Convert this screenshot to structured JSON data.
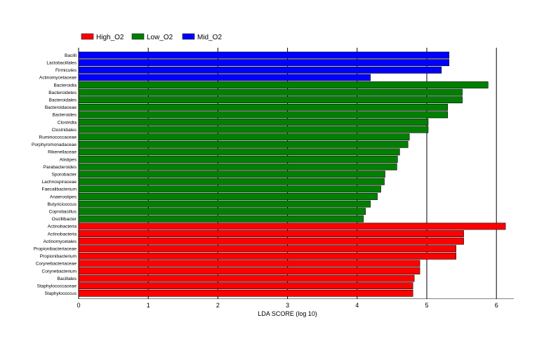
{
  "chart_data": {
    "type": "bar",
    "orientation": "horizontal",
    "title": "",
    "xlabel": "LDA SCORE (log 10)",
    "ylabel": "",
    "xlim": [
      0,
      6.25
    ],
    "xticks": [
      "0",
      "1",
      "2",
      "3",
      "4",
      "5",
      "6"
    ],
    "grid": "vertical lines at major ticks",
    "legend_placement": "top-left",
    "legend": [
      {
        "name": "High_O2",
        "color": "#ff0000"
      },
      {
        "name": "Low_O2",
        "color": "#008000"
      },
      {
        "name": "Mid_O2",
        "color": "#0000ff"
      }
    ],
    "bars": [
      {
        "label": "Bacilli",
        "value": 5.32,
        "group": "Mid_O2"
      },
      {
        "label": "Lactobacillales",
        "value": 5.32,
        "group": "Mid_O2"
      },
      {
        "label": "Firmicutes",
        "value": 5.21,
        "group": "Mid_O2"
      },
      {
        "label": "Actinomycetaceae",
        "value": 4.19,
        "group": "Mid_O2"
      },
      {
        "label": "Bacteroidia",
        "value": 5.88,
        "group": "Low_O2"
      },
      {
        "label": "Bacteroidetes",
        "value": 5.51,
        "group": "Low_O2"
      },
      {
        "label": "Bacteroidales",
        "value": 5.51,
        "group": "Low_O2"
      },
      {
        "label": "Bacteroidaceae",
        "value": 5.3,
        "group": "Low_O2"
      },
      {
        "label": "Bacteroides",
        "value": 5.3,
        "group": "Low_O2"
      },
      {
        "label": "Clostridia",
        "value": 5.02,
        "group": "Low_O2"
      },
      {
        "label": "Clostridiales",
        "value": 5.02,
        "group": "Low_O2"
      },
      {
        "label": "Ruminococcaceae",
        "value": 4.75,
        "group": "Low_O2"
      },
      {
        "label": "Porphyromonadaceae",
        "value": 4.73,
        "group": "Low_O2"
      },
      {
        "label": "Rikenellaceae",
        "value": 4.61,
        "group": "Low_O2"
      },
      {
        "label": "Alistipes",
        "value": 4.58,
        "group": "Low_O2"
      },
      {
        "label": "Parabacteroides",
        "value": 4.57,
        "group": "Low_O2"
      },
      {
        "label": "Sporobacter",
        "value": 4.4,
        "group": "Low_O2"
      },
      {
        "label": "Lachnospiraceae",
        "value": 4.39,
        "group": "Low_O2"
      },
      {
        "label": "Faecalibacterium",
        "value": 4.34,
        "group": "Low_O2"
      },
      {
        "label": "Anaerostipes",
        "value": 4.29,
        "group": "Low_O2"
      },
      {
        "label": "Butyricicoccus",
        "value": 4.19,
        "group": "Low_O2"
      },
      {
        "label": "Coprobacillus",
        "value": 4.12,
        "group": "Low_O2"
      },
      {
        "label": "Oscillibacter",
        "value": 4.09,
        "group": "Low_O2"
      },
      {
        "label": "Actinobacteria",
        "value": 6.13,
        "group": "High_O2"
      },
      {
        "label": "Actinobacteria",
        "value": 5.53,
        "group": "High_O2"
      },
      {
        "label": "Actinomycetales",
        "value": 5.53,
        "group": "High_O2"
      },
      {
        "label": "Propionibacteriaceae",
        "value": 5.42,
        "group": "High_O2"
      },
      {
        "label": "Propionibacterium",
        "value": 5.42,
        "group": "High_O2"
      },
      {
        "label": "Corynebacteriaceae",
        "value": 4.9,
        "group": "High_O2"
      },
      {
        "label": "Corynebacterium",
        "value": 4.9,
        "group": "High_O2"
      },
      {
        "label": "Bacillales",
        "value": 4.82,
        "group": "High_O2"
      },
      {
        "label": "Staphylococcaceae",
        "value": 4.8,
        "group": "High_O2"
      },
      {
        "label": "Staphylococcus",
        "value": 4.8,
        "group": "High_O2"
      }
    ]
  }
}
